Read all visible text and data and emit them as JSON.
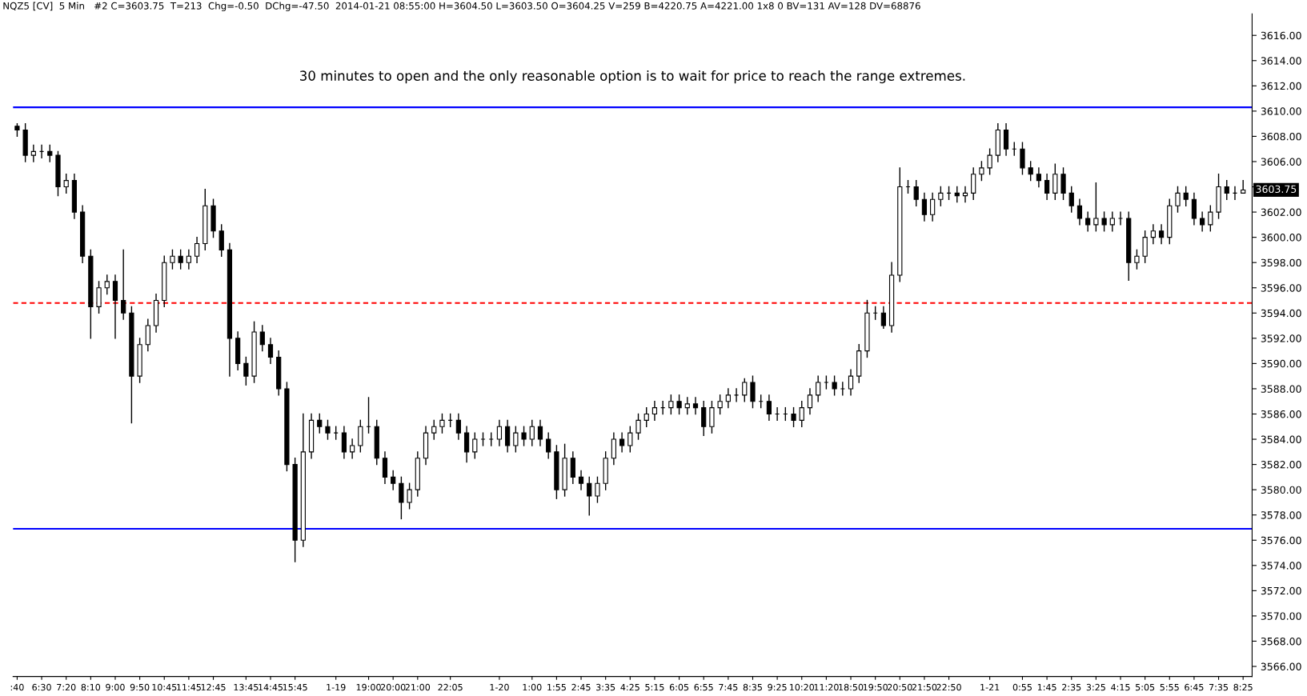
{
  "chart_data": {
    "type": "candlestick",
    "color": "#000000",
    "annotations": [
      "NQZ5 [CV]  5 Min   #2 C=3603.75  T=213  Chg=-0.50  DChg=-47.50  2014-01-21 08:55:00 H=3604.50 L=3603.50 O=3604.25 V=259 B=4220.75 A=4221.00 1x8 0 BV=131 AV=128 DV=68876",
      "30 minutes to open and the only reasonable option is to wait for price to reach the range extremes.",
      "3603.75"
    ],
    "categories": [
      ":40",
      null,
      null,
      "6:30",
      null,
      null,
      "7:20",
      null,
      null,
      "8:10",
      null,
      null,
      "9:00",
      null,
      null,
      "9:50",
      null,
      null,
      "10:45",
      null,
      null,
      "11:45",
      null,
      null,
      "12:45",
      null,
      null,
      null,
      "13:45",
      null,
      null,
      "14:45",
      null,
      null,
      "15:45",
      null,
      null,
      null,
      null,
      "1-19",
      null,
      null,
      null,
      "19:00",
      null,
      null,
      "20:00",
      null,
      null,
      "21:00",
      null,
      null,
      null,
      "22:05",
      null,
      null,
      null,
      null,
      null,
      "1-20",
      null,
      null,
      null,
      "1:00",
      null,
      null,
      "1:55",
      null,
      null,
      "2:45",
      null,
      null,
      "3:35",
      null,
      null,
      "4:25",
      null,
      null,
      "5:15",
      null,
      null,
      "6:05",
      null,
      null,
      "6:55",
      null,
      null,
      "7:45",
      null,
      null,
      "8:35",
      null,
      null,
      "9:25",
      null,
      null,
      "10:20",
      null,
      null,
      "11:20",
      null,
      null,
      "18:50",
      null,
      null,
      "19:50",
      null,
      null,
      "20:50",
      null,
      null,
      "21:50",
      null,
      null,
      "22:50",
      null,
      null,
      null,
      null,
      "1-21",
      null,
      null,
      null,
      "0:55",
      null,
      null,
      "1:45",
      null,
      null,
      "2:35",
      null,
      null,
      "3:25",
      null,
      null,
      "4:15",
      null,
      null,
      "5:05",
      null,
      null,
      "5:55",
      null,
      null,
      "6:45",
      null,
      null,
      "7:35",
      null,
      null,
      "8:25"
    ],
    "ohlc": [
      [
        3608.8,
        3609,
        3608.0,
        3608.5
      ],
      [
        3608.5,
        3609.0,
        3606.0,
        3606.5
      ],
      [
        3606.5,
        3607.3,
        3606.0,
        3606.8
      ],
      [
        3606.8,
        3607.3,
        3606.3,
        3606.8
      ],
      [
        3606.8,
        3607.3,
        3606.0,
        3606.5
      ],
      [
        3606.5,
        3606.8,
        3603.3,
        3604
      ],
      [
        3604,
        3605.0,
        3603.5,
        3604.5
      ],
      [
        3604.5,
        3605.0,
        3601.5,
        3602
      ],
      [
        3602,
        3602.5,
        3598.0,
        3598.5
      ],
      [
        3598.5,
        3599.0,
        3592,
        3594.5
      ],
      [
        3594.5,
        3596.5,
        3594.0,
        3596
      ],
      [
        3596,
        3597.0,
        3595.5,
        3596.5
      ],
      [
        3596.5,
        3597.0,
        3592,
        3595
      ],
      [
        3595,
        3599,
        3593.5,
        3594
      ],
      [
        3594,
        3594.5,
        3585.3,
        3589
      ],
      [
        3589,
        3592.0,
        3588.5,
        3591.5
      ],
      [
        3591.5,
        3593.5,
        3591.0,
        3593
      ],
      [
        3593,
        3595.5,
        3592.5,
        3595
      ],
      [
        3595,
        3598.5,
        3594.5,
        3598
      ],
      [
        3598,
        3599.0,
        3597.5,
        3598.5
      ],
      [
        3598.5,
        3599.0,
        3597.5,
        3598
      ],
      [
        3598,
        3599.0,
        3597.5,
        3598.5
      ],
      [
        3598.5,
        3600.0,
        3598.0,
        3599.5
      ],
      [
        3599.5,
        3603.8,
        3599.0,
        3602.5
      ],
      [
        3602.5,
        3603.0,
        3600.0,
        3600.5
      ],
      [
        3600.5,
        3601.0,
        3598.5,
        3599
      ],
      [
        3599,
        3599.5,
        3589,
        3592
      ],
      [
        3592,
        3592.5,
        3589.5,
        3590
      ],
      [
        3590,
        3590.5,
        3588.3,
        3589
      ],
      [
        3589,
        3593.3,
        3588.5,
        3592.5
      ],
      [
        3592.5,
        3593.0,
        3591.0,
        3591.5
      ],
      [
        3591.5,
        3592.0,
        3590.0,
        3590.5
      ],
      [
        3590.5,
        3591.0,
        3587.5,
        3588
      ],
      [
        3588,
        3588.5,
        3581.5,
        3582
      ],
      [
        3582,
        3582.5,
        3574.3,
        3576
      ],
      [
        3576,
        3586,
        3575.5,
        3583
      ],
      [
        3583,
        3586.0,
        3582.5,
        3585.5
      ],
      [
        3585.5,
        3586.0,
        3584.5,
        3585
      ],
      [
        3585,
        3585.5,
        3584.0,
        3584.5
      ],
      [
        3584.5,
        3585.0,
        3584.0,
        3584.5
      ],
      [
        3584.5,
        3585.0,
        3582.5,
        3583
      ],
      [
        3583,
        3584.0,
        3582.5,
        3583.5
      ],
      [
        3583.5,
        3585.5,
        3583.0,
        3585
      ],
      [
        3585,
        3587.3,
        3584.5,
        3585
      ],
      [
        3585,
        3585.5,
        3582.0,
        3582.5
      ],
      [
        3582.5,
        3583.0,
        3580.5,
        3581
      ],
      [
        3581,
        3581.5,
        3580.0,
        3580.5
      ],
      [
        3580.5,
        3581.0,
        3577.7,
        3579
      ],
      [
        3579,
        3580.5,
        3578.5,
        3580
      ],
      [
        3580,
        3583.0,
        3579.5,
        3582.5
      ],
      [
        3582.5,
        3585.0,
        3582.0,
        3584.5
      ],
      [
        3584.5,
        3585.5,
        3584.0,
        3585
      ],
      [
        3585,
        3586.0,
        3584.5,
        3585.5
      ],
      [
        3585.5,
        3586.0,
        3585.0,
        3585.5
      ],
      [
        3585.5,
        3586.0,
        3584.0,
        3584.5
      ],
      [
        3584.5,
        3585.0,
        3582.2,
        3583
      ],
      [
        3583,
        3584.5,
        3582.5,
        3584
      ],
      [
        3584,
        3584.5,
        3583.5,
        3584
      ],
      [
        3584,
        3584.5,
        3583.5,
        3584
      ],
      [
        3584,
        3585.5,
        3583.5,
        3585
      ],
      [
        3585,
        3585.5,
        3583.0,
        3583.5
      ],
      [
        3583.5,
        3585.0,
        3583.0,
        3584.5
      ],
      [
        3584.5,
        3585.0,
        3583.5,
        3584
      ],
      [
        3584,
        3585.5,
        3583.5,
        3585
      ],
      [
        3585,
        3585.5,
        3583.5,
        3584
      ],
      [
        3584,
        3584.5,
        3582.5,
        3583
      ],
      [
        3583,
        3583.5,
        3579.3,
        3580
      ],
      [
        3580,
        3583.6,
        3579.5,
        3582.5
      ],
      [
        3582.5,
        3583.0,
        3580.5,
        3581
      ],
      [
        3581,
        3581.5,
        3580.0,
        3580.5
      ],
      [
        3580.5,
        3581.0,
        3578,
        3579.5
      ],
      [
        3579.5,
        3581.0,
        3579.0,
        3580.5
      ],
      [
        3580.5,
        3583.0,
        3580.0,
        3582.5
      ],
      [
        3582.5,
        3584.5,
        3582.0,
        3584
      ],
      [
        3584,
        3584.5,
        3583.0,
        3583.5
      ],
      [
        3583.5,
        3585.0,
        3583.0,
        3584.5
      ],
      [
        3584.5,
        3586.0,
        3584.0,
        3585.5
      ],
      [
        3585.5,
        3586.5,
        3585.0,
        3586
      ],
      [
        3586,
        3587.0,
        3585.5,
        3586.5
      ],
      [
        3586.5,
        3587.0,
        3586.0,
        3586.5
      ],
      [
        3586.5,
        3587.5,
        3586.0,
        3587
      ],
      [
        3587,
        3587.5,
        3586.0,
        3586.5
      ],
      [
        3586.5,
        3587.3,
        3586.0,
        3586.8
      ],
      [
        3586.8,
        3587.3,
        3586.0,
        3586.5
      ],
      [
        3586.5,
        3587.0,
        3584.3,
        3585
      ],
      [
        3585,
        3587.0,
        3584.5,
        3586.5
      ],
      [
        3586.5,
        3587.5,
        3586.0,
        3587
      ],
      [
        3587,
        3588.0,
        3586.5,
        3587.5
      ],
      [
        3587.5,
        3588.0,
        3587.0,
        3587.5
      ],
      [
        3587.5,
        3588.8,
        3587.0,
        3588.5
      ],
      [
        3588.5,
        3589.0,
        3586.5,
        3587
      ],
      [
        3587,
        3587.5,
        3586.5,
        3587
      ],
      [
        3587,
        3587.5,
        3585.5,
        3586
      ],
      [
        3586,
        3586.5,
        3585.5,
        3586
      ],
      [
        3586,
        3586.5,
        3585.5,
        3586
      ],
      [
        3586,
        3586.5,
        3585.0,
        3585.5
      ],
      [
        3585.5,
        3587.0,
        3585,
        3586.5
      ],
      [
        3586.5,
        3588.0,
        3586.0,
        3587.5
      ],
      [
        3587.5,
        3589,
        3587.0,
        3588.5
      ],
      [
        3588.5,
        3589.0,
        3588.0,
        3588.5
      ],
      [
        3588.5,
        3589.0,
        3587.5,
        3588
      ],
      [
        3588,
        3588.5,
        3587.5,
        3588
      ],
      [
        3588,
        3589.5,
        3587.5,
        3589
      ],
      [
        3589,
        3591.5,
        3588.5,
        3591
      ],
      [
        3591,
        3595,
        3590.5,
        3594
      ],
      [
        3594,
        3594.5,
        3593.5,
        3594
      ],
      [
        3594,
        3594.5,
        3592.8,
        3593
      ],
      [
        3593,
        3598,
        3592.5,
        3597
      ],
      [
        3597,
        3605.5,
        3596.5,
        3604
      ],
      [
        3604,
        3604.5,
        3603.5,
        3604
      ],
      [
        3604,
        3604.5,
        3602.5,
        3603
      ],
      [
        3603,
        3603.5,
        3601.3,
        3601.8
      ],
      [
        3601.8,
        3603.5,
        3601.3,
        3603
      ],
      [
        3603,
        3604.0,
        3602.5,
        3603.5
      ],
      [
        3603.5,
        3604.0,
        3603.0,
        3603.5
      ],
      [
        3603.5,
        3604.0,
        3602.8,
        3603.3
      ],
      [
        3603.3,
        3604.0,
        3602.8,
        3603.5
      ],
      [
        3603.5,
        3605.5,
        3603.0,
        3605
      ],
      [
        3605,
        3606.0,
        3604.5,
        3605.5
      ],
      [
        3605.5,
        3607.0,
        3605.0,
        3606.5
      ],
      [
        3606.5,
        3609,
        3606.0,
        3608.5
      ],
      [
        3608.5,
        3609.0,
        3606.5,
        3607
      ],
      [
        3607,
        3607.5,
        3606.5,
        3607
      ],
      [
        3607,
        3607.5,
        3605.0,
        3605.5
      ],
      [
        3605.5,
        3606.0,
        3604.5,
        3605
      ],
      [
        3605,
        3605.5,
        3604.0,
        3604.5
      ],
      [
        3604.5,
        3605.0,
        3603.0,
        3603.5
      ],
      [
        3603.5,
        3605.8,
        3603.0,
        3605
      ],
      [
        3605,
        3605.5,
        3603.0,
        3603.5
      ],
      [
        3603.5,
        3604.0,
        3602.0,
        3602.5
      ],
      [
        3602.5,
        3603.0,
        3601.0,
        3601.5
      ],
      [
        3601.5,
        3602.0,
        3600.5,
        3601
      ],
      [
        3601,
        3604.3,
        3600.5,
        3601.5
      ],
      [
        3601.5,
        3602.0,
        3600.5,
        3601
      ],
      [
        3601,
        3602.0,
        3600.5,
        3601.5
      ],
      [
        3601.5,
        3602.0,
        3601.0,
        3601.5
      ],
      [
        3601.5,
        3602.0,
        3596.6,
        3598
      ],
      [
        3598,
        3599.0,
        3597.5,
        3598.5
      ],
      [
        3598.5,
        3600.5,
        3598.0,
        3600
      ],
      [
        3600,
        3601.0,
        3599.5,
        3600.5
      ],
      [
        3600.5,
        3601.0,
        3599.5,
        3600
      ],
      [
        3600,
        3603.0,
        3599.5,
        3602.5
      ],
      [
        3602.5,
        3604.0,
        3602.0,
        3603.5
      ],
      [
        3603.5,
        3604.0,
        3602.5,
        3603
      ],
      [
        3603,
        3603.5,
        3601.0,
        3601.5
      ],
      [
        3601.5,
        3602.0,
        3600.5,
        3601
      ],
      [
        3601,
        3602.5,
        3600.5,
        3602
      ],
      [
        3602,
        3605,
        3601.5,
        3604
      ],
      [
        3604,
        3604.5,
        3603.0,
        3603.5
      ],
      [
        3603.5,
        3604.0,
        3603.0,
        3603.5
      ],
      [
        3603.5,
        3604.5,
        3603.5,
        3603.75
      ]
    ],
    "ylim": [
      3565.2,
      3617.7
    ],
    "yticks": [
      {
        "value": 3566,
        "label": "3566.00"
      },
      {
        "value": 3568,
        "label": "3568.00"
      },
      {
        "value": 3570,
        "label": "3570.00"
      },
      {
        "value": 3572,
        "label": "3572.00"
      },
      {
        "value": 3574,
        "label": "3574.00"
      },
      {
        "value": 3576,
        "label": "3576.00"
      },
      {
        "value": 3578,
        "label": "3578.00"
      },
      {
        "value": 3580,
        "label": "3580.00"
      },
      {
        "value": 3582,
        "label": "3582.00"
      },
      {
        "value": 3584,
        "label": "3584.00"
      },
      {
        "value": 3586,
        "label": "3586.00"
      },
      {
        "value": 3588,
        "label": "3588.00"
      },
      {
        "value": 3590,
        "label": "3590.00"
      },
      {
        "value": 3592,
        "label": "3592.00"
      },
      {
        "value": 3594,
        "label": "3594.00"
      },
      {
        "value": 3596,
        "label": "3596.00"
      },
      {
        "value": 3598,
        "label": "3598.00"
      },
      {
        "value": 3600,
        "label": "3600.00"
      },
      {
        "value": 3602,
        "label": "3602.00"
      },
      {
        "value": 3604,
        "label": null
      },
      {
        "value": 3606,
        "label": "3606.00"
      },
      {
        "value": 3608,
        "label": "3608.00"
      },
      {
        "value": 3610,
        "label": "3610.00"
      },
      {
        "value": 3612,
        "label": "3612.00"
      },
      {
        "value": 3614,
        "label": "3614.00"
      },
      {
        "value": 3616,
        "label": "3616.00"
      }
    ],
    "ref_lines": [
      {
        "axis": "y",
        "value": 3610.3,
        "color": "#0000ff",
        "line_style": "solid"
      },
      {
        "axis": "y",
        "value": 3594.8,
        "color": "#ff0000",
        "line_style": "dashed"
      },
      {
        "axis": "y",
        "value": 3576.9,
        "color": "#0000ff",
        "line_style": "solid"
      }
    ]
  }
}
